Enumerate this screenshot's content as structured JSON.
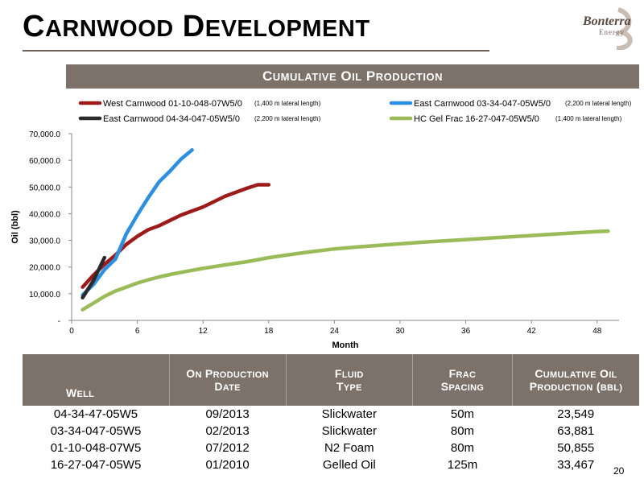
{
  "header": {
    "title": "Carnwood Development",
    "logo_name": "Bonterra",
    "logo_sub": "Energy"
  },
  "chart_data": {
    "type": "line",
    "title": "Cumulative Oil Production",
    "xlabel": "Month",
    "ylabel": "Oil (bbl)",
    "xlim": [
      0,
      50
    ],
    "ylim": [
      0,
      70000
    ],
    "x_ticks": [
      0,
      6,
      12,
      18,
      24,
      30,
      36,
      42,
      48
    ],
    "y_ticks": [
      0,
      10000,
      20000,
      30000,
      40000,
      50000,
      60000,
      70000
    ],
    "y_tick_labels": [
      "-",
      "10,000.0",
      "20,000.0",
      "30,000.0",
      "40,000.0",
      "50,000.0",
      "60,000.0",
      "70,000.0"
    ],
    "grid": false,
    "legend_position": "top",
    "series": [
      {
        "name": "West Carnwood 01-10-048-07W5/0",
        "note": "(1,400 m lateral length)",
        "color": "#9e1b1b",
        "x": [
          1,
          2,
          3,
          4,
          5,
          6,
          7,
          8,
          9,
          10,
          11,
          12,
          13,
          14,
          15,
          16,
          17,
          18
        ],
        "y": [
          12500,
          17000,
          21000,
          24500,
          28500,
          31500,
          34000,
          35500,
          37500,
          39500,
          41000,
          42500,
          44500,
          46500,
          48000,
          49500,
          50855,
          50855
        ]
      },
      {
        "name": "East Carnwood 03-34-047-05W5/0",
        "note": "(2,200 m lateral length)",
        "color": "#2e8fe0",
        "x": [
          1,
          2,
          3,
          4,
          5,
          6,
          7,
          8,
          9,
          10,
          11
        ],
        "y": [
          9500,
          13500,
          19000,
          23000,
          32500,
          39500,
          46000,
          52000,
          56000,
          60500,
          63881
        ]
      },
      {
        "name": "East Carnwood 04-34-047-05W5/0",
        "note": "(2,200 m lateral length)",
        "color": "#2a2a2a",
        "x": [
          1,
          2,
          3
        ],
        "y": [
          8500,
          15000,
          23549
        ]
      },
      {
        "name": "HC Gel Frac 16-27-047-05W5/0",
        "note": "(1,400 m lateral length)",
        "color": "#9bbb59",
        "x": [
          1,
          2,
          3,
          4,
          5,
          6,
          7,
          8,
          9,
          10,
          12,
          14,
          16,
          18,
          20,
          22,
          24,
          26,
          28,
          30,
          32,
          34,
          36,
          38,
          40,
          42,
          44,
          46,
          48,
          49
        ],
        "y": [
          4000,
          6500,
          9000,
          11000,
          12500,
          14000,
          15200,
          16300,
          17200,
          18000,
          19500,
          20800,
          22000,
          23500,
          24700,
          25800,
          26800,
          27500,
          28100,
          28700,
          29300,
          29800,
          30300,
          30800,
          31300,
          31800,
          32300,
          32800,
          33300,
          33467
        ]
      }
    ]
  },
  "table": {
    "headers": [
      [
        "Well"
      ],
      [
        "On Production",
        "Date"
      ],
      [
        "Fluid",
        "Type"
      ],
      [
        "Frac",
        "Spacing"
      ],
      [
        "Cumulative Oil",
        "Production (bbl)"
      ]
    ],
    "rows": [
      [
        "04-34-47-05W5",
        "09/2013",
        "Slickwater",
        "50m",
        "23,549"
      ],
      [
        "03-34-047-05W5",
        "02/2013",
        "Slickwater",
        "80m",
        "63,881"
      ],
      [
        "01-10-048-07W5",
        "07/2012",
        "N2 Foam",
        "80m",
        "50,855"
      ],
      [
        "16-27-047-05W5",
        "01/2010",
        "Gelled Oil",
        "125m",
        "33,467"
      ]
    ]
  },
  "page_number": "20"
}
